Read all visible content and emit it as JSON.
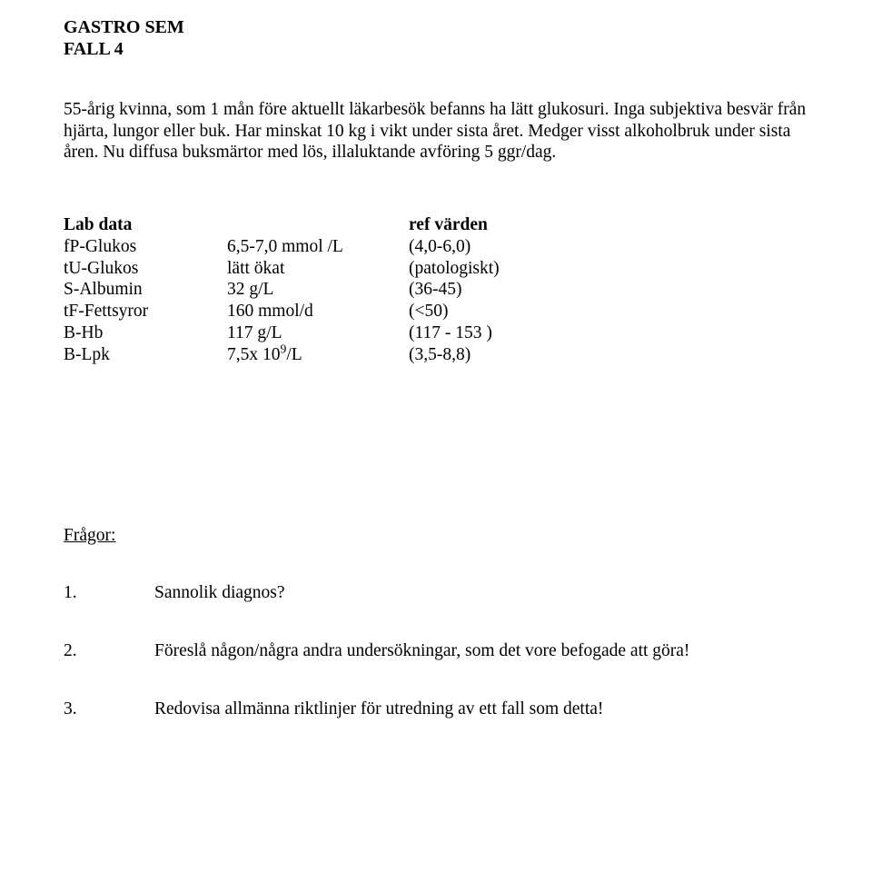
{
  "header": {
    "line1": "GASTRO SEM",
    "line2": "FALL 4"
  },
  "paragraph": "55-årig kvinna, som 1 mån före aktuellt läkarbesök befanns ha lätt glukosuri. Inga subjektiva besvär från hjärta, lungor eller buk. Har minskat 10 kg i vikt under sista året. Medger visst alkoholbruk under sista åren. Nu diffusa buksmärtor med lös, illaluktande avföring 5 ggr/dag.",
  "table": {
    "header": {
      "c1": "Lab data",
      "c2": "",
      "c3": "ref värden"
    },
    "rows": [
      {
        "c1": "fP-Glukos",
        "c2": "6,5-7,0 mmol /L",
        "c3": "(4,0-6,0)"
      },
      {
        "c1": "tU-Glukos",
        "c2": "lätt ökat",
        "c3": "(patologiskt)"
      },
      {
        "c1": "S-Albumin",
        "c2": "32 g/L",
        "c3": "(36-45)"
      },
      {
        "c1": "tF-Fettsyror",
        "c2": "160 mmol/d",
        "c3": "(<50)"
      },
      {
        "c1": "B-Hb",
        "c2": "117 g/L",
        "c3": "(117 - 153 )"
      }
    ],
    "lastRow": {
      "c1": "B-Lpk",
      "c2_pre": "7,5x 10",
      "c2_sup": "9",
      "c2_post": "/L",
      "c3": "(3,5-8,8)"
    }
  },
  "questionsHeading": "Frågor:",
  "questions": [
    {
      "num": "1.",
      "text": "Sannolik diagnos?"
    },
    {
      "num": "2.",
      "text": "Föreslå någon/några andra undersökningar, som det vore befogade att göra!"
    },
    {
      "num": "3.",
      "text": "Redovisa allmänna riktlinjer för utredning av ett fall som detta!"
    }
  ]
}
